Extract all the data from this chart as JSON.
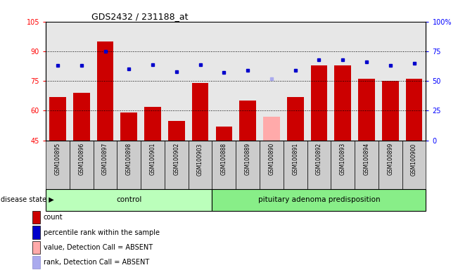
{
  "title": "GDS2432 / 231188_at",
  "samples": [
    "GSM100895",
    "GSM100896",
    "GSM100897",
    "GSM100898",
    "GSM100901",
    "GSM100902",
    "GSM100903",
    "GSM100888",
    "GSM100889",
    "GSM100890",
    "GSM100891",
    "GSM100892",
    "GSM100893",
    "GSM100894",
    "GSM100899",
    "GSM100900"
  ],
  "bar_values": [
    67,
    69,
    95,
    59,
    62,
    55,
    74,
    52,
    65,
    57,
    67,
    83,
    83,
    76,
    75,
    76
  ],
  "bar_colors": [
    "#cc0000",
    "#cc0000",
    "#cc0000",
    "#cc0000",
    "#cc0000",
    "#cc0000",
    "#cc0000",
    "#cc0000",
    "#cc0000",
    "#ffaaaa",
    "#cc0000",
    "#cc0000",
    "#cc0000",
    "#cc0000",
    "#cc0000",
    "#cc0000"
  ],
  "percentile_values": [
    63,
    63,
    75,
    60,
    64,
    58,
    64,
    57,
    59,
    52,
    59,
    68,
    68,
    66,
    63,
    65
  ],
  "percentile_colors": [
    "#0000cc",
    "#0000cc",
    "#0000cc",
    "#0000cc",
    "#0000cc",
    "#0000cc",
    "#0000cc",
    "#0000cc",
    "#0000cc",
    "#aaaaee",
    "#0000cc",
    "#0000cc",
    "#0000cc",
    "#0000cc",
    "#0000cc",
    "#0000cc"
  ],
  "control_count": 7,
  "group_labels": [
    "control",
    "pituitary adenoma predisposition"
  ],
  "group_colors": [
    "#bbffbb",
    "#88ee88"
  ],
  "ylim_left": [
    45,
    105
  ],
  "ylim_right": [
    0,
    100
  ],
  "yticks_left": [
    45,
    60,
    75,
    90,
    105
  ],
  "ytick_labels_left": [
    "45",
    "60",
    "75",
    "90",
    "105"
  ],
  "yticks_right": [
    0,
    25,
    50,
    75,
    100
  ],
  "ytick_labels_right": [
    "0",
    "25",
    "50",
    "75",
    "100%"
  ],
  "grid_values": [
    60,
    75,
    90
  ],
  "legend_items": [
    {
      "label": "count",
      "color": "#cc0000"
    },
    {
      "label": "percentile rank within the sample",
      "color": "#0000cc"
    },
    {
      "label": "value, Detection Call = ABSENT",
      "color": "#ffaaaa"
    },
    {
      "label": "rank, Detection Call = ABSENT",
      "color": "#aaaaee"
    }
  ]
}
